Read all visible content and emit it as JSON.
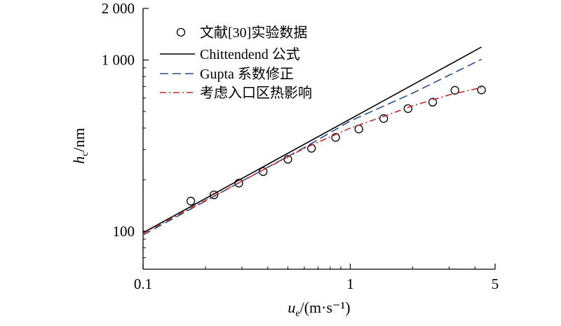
{
  "chart_data": {
    "type": "scatter",
    "x_scale": "log",
    "y_scale": "log",
    "xlim": [
      0.1,
      5
    ],
    "ylim": [
      60,
      2000
    ],
    "xlabel": {
      "var": "u",
      "sub": "e",
      "unit": "/(m·s⁻¹)"
    },
    "ylabel": {
      "var": "h",
      "sub": "c",
      "unit": "/nm"
    },
    "x_ticks": [
      {
        "value": 0.1,
        "label": "0.1"
      },
      {
        "value": 1,
        "label": "1"
      },
      {
        "value": 5,
        "label": "5"
      }
    ],
    "y_ticks": [
      {
        "value": 100,
        "label": "100"
      },
      {
        "value": 1000,
        "label": "1 000"
      },
      {
        "value": 2000,
        "label": "2 000"
      }
    ],
    "legend_position": "top-left",
    "series": [
      {
        "name": "文献[30]实验数据",
        "style": "markers",
        "color": "#000000",
        "x": [
          0.17,
          0.22,
          0.29,
          0.38,
          0.5,
          0.65,
          0.85,
          1.1,
          1.45,
          1.9,
          2.5,
          3.2,
          4.3
        ],
        "y": [
          150,
          163,
          191,
          223,
          263,
          305,
          353,
          395,
          455,
          520,
          567,
          665,
          668
        ]
      },
      {
        "name": "Chittendend 公式",
        "style": "solid",
        "color": "#000000",
        "x": [
          0.1,
          4.3
        ],
        "y": [
          98,
          1190
        ]
      },
      {
        "name": "Gupta 系数修正",
        "style": "dashed",
        "color": "#2b4f8c",
        "x": [
          0.1,
          0.3,
          0.6,
          1.0,
          2.0,
          4.3
        ],
        "y": [
          95,
          196,
          308,
          440,
          640,
          1010
        ]
      },
      {
        "name": "考虑入口区热影响",
        "style": "dashdot",
        "color": "#c0282d",
        "x": [
          0.1,
          0.3,
          0.6,
          1.0,
          1.5,
          2.0,
          3.0,
          4.3
        ],
        "y": [
          97,
          196,
          305,
          400,
          475,
          540,
          625,
          690
        ]
      }
    ]
  }
}
